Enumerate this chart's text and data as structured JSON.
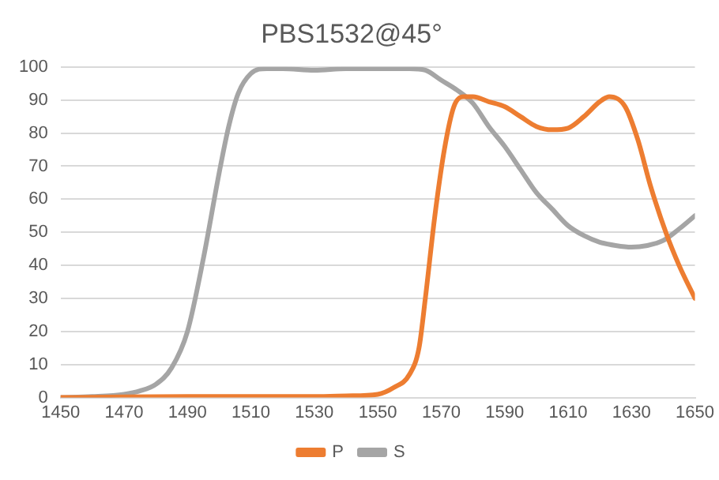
{
  "chart_data": {
    "type": "line",
    "title": "PBS1532@45°",
    "xlim": [
      1450,
      1650
    ],
    "xticks": [
      1450,
      1470,
      1490,
      1510,
      1530,
      1550,
      1570,
      1590,
      1610,
      1630,
      1650
    ],
    "ylim": [
      0,
      100
    ],
    "yticks": [
      0,
      10,
      20,
      30,
      40,
      50,
      60,
      70,
      80,
      90,
      100
    ],
    "grid": "y",
    "legend": "bottom",
    "marker": "none",
    "series": [
      {
        "name": "P",
        "color": "#ed7d31",
        "x": [
          1450,
          1470,
          1490,
          1510,
          1530,
          1540,
          1550,
          1555,
          1560,
          1563,
          1565,
          1568,
          1571,
          1574,
          1577,
          1580,
          1585,
          1590,
          1595,
          1600,
          1605,
          1610,
          1615,
          1620,
          1623,
          1628,
          1632,
          1636,
          1641,
          1645,
          1650
        ],
        "values": [
          0,
          0.2,
          0.3,
          0.3,
          0.3,
          0.5,
          1,
          3,
          7,
          15,
          30,
          55,
          75,
          88,
          91,
          91,
          89.5,
          88,
          85,
          82,
          81,
          81.5,
          85,
          89.5,
          91,
          88,
          78,
          64,
          49.5,
          40,
          30
        ]
      },
      {
        "name": "S",
        "color": "#a5a5a5",
        "x": [
          1450,
          1460,
          1470,
          1475,
          1480,
          1485,
          1490,
          1495,
          1500,
          1503,
          1506,
          1510,
          1515,
          1520,
          1530,
          1540,
          1550,
          1560,
          1565,
          1570,
          1575,
          1580,
          1585,
          1590,
          1595,
          1600,
          1605,
          1610,
          1615,
          1620,
          1625,
          1630,
          1635,
          1640,
          1645,
          1650
        ],
        "values": [
          0,
          0.3,
          1,
          2,
          4,
          9,
          20,
          42,
          68,
          82,
          92,
          98,
          99.5,
          99.5,
          99,
          99.5,
          99.5,
          99.5,
          99,
          96,
          93,
          89,
          82,
          76,
          69,
          62,
          57,
          52,
          49,
          47,
          46,
          45.5,
          46,
          47.5,
          51,
          55
        ]
      }
    ]
  }
}
